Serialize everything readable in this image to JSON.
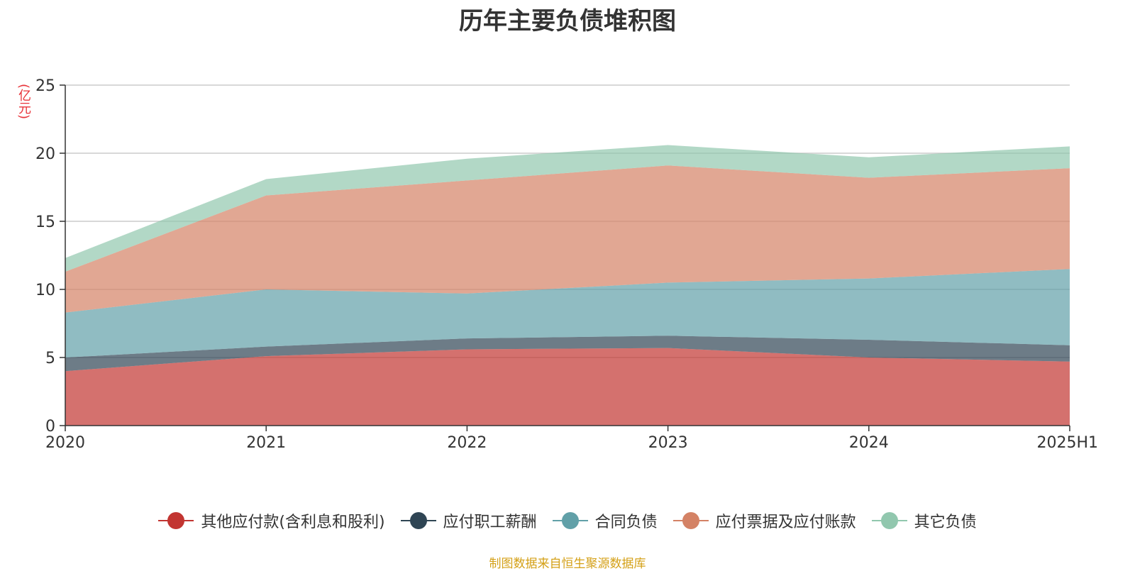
{
  "chart_data": {
    "type": "area",
    "stacked": true,
    "title": "历年主要负债堆积图",
    "ylabel": "(亿元)",
    "xlabel": "",
    "x": [
      "2020",
      "2021",
      "2022",
      "2023",
      "2024",
      "2025H1"
    ],
    "ylim": [
      0,
      25
    ],
    "yticks": [
      0,
      5,
      10,
      15,
      20,
      25
    ],
    "grid": true,
    "legend_position": "bottom",
    "series": [
      {
        "name": "其他应付款(含利息和股利)",
        "values": [
          4.0,
          5.1,
          5.6,
          5.7,
          5.0,
          4.7
        ],
        "color": "#c23531"
      },
      {
        "name": "应付职工薪酬",
        "values": [
          1.0,
          0.7,
          0.8,
          0.9,
          1.3,
          1.2
        ],
        "color": "#2f4554"
      },
      {
        "name": "合同负债",
        "values": [
          3.3,
          4.2,
          3.3,
          3.9,
          4.5,
          5.6
        ],
        "color": "#61a0a8"
      },
      {
        "name": "应付票据及应付账款",
        "values": [
          3.0,
          6.9,
          8.3,
          8.6,
          7.4,
          7.4
        ],
        "color": "#d48265"
      },
      {
        "name": "其它负债",
        "values": [
          1.0,
          1.2,
          1.6,
          1.5,
          1.5,
          1.6
        ],
        "color": "#91c7ae"
      }
    ]
  },
  "footer": {
    "source": "制图数据来自恒生聚源数据库"
  }
}
